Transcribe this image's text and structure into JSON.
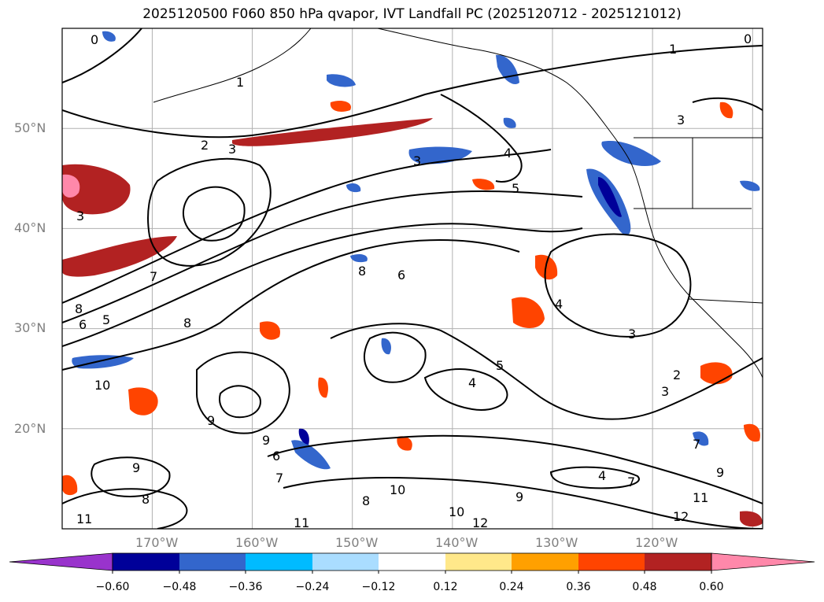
{
  "title": "2025120500 F060 850 hPa qvapor, IVT Landfall PC (2025120712 - 2025121012)",
  "map": {
    "lat_labels": [
      "50°N",
      "40°N",
      "30°N",
      "20°N"
    ],
    "lon_labels": [
      "170°W",
      "160°W",
      "150°W",
      "140°W",
      "130°W",
      "120°W"
    ],
    "extent": {
      "lon_min": -179,
      "lon_max": -109,
      "lat_min": 10,
      "lat_max": 60
    },
    "gridlines": true,
    "contour_labels": [
      "0",
      "1",
      "2",
      "3",
      "4",
      "5",
      "6",
      "7",
      "8",
      "9",
      "10",
      "11",
      "12"
    ]
  },
  "colorbar": {
    "ticks": [
      "−0.60",
      "−0.48",
      "−0.36",
      "−0.24",
      "−0.12",
      "0.12",
      "0.24",
      "0.36",
      "0.48",
      "0.60"
    ],
    "colors": [
      "#9933cc",
      "#000099",
      "#3366cc",
      "#00bbff",
      "#aaddff",
      "#ffffff",
      "#ffe88a",
      "#ffa000",
      "#ff4400",
      "#b22222",
      "#ff88aa"
    ],
    "extend": "both"
  }
}
